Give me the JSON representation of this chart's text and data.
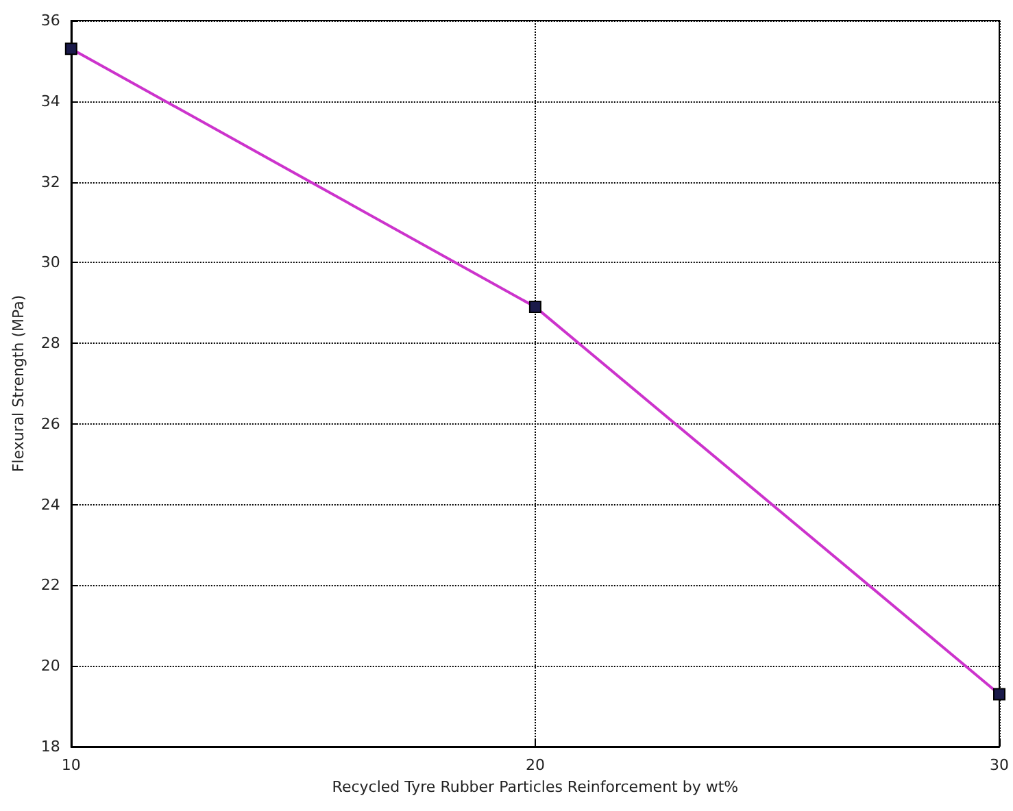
{
  "chart_data": {
    "type": "line",
    "xlabel": "Recycled Tyre Rubber Particles Reinforcement by wt%",
    "ylabel": "Flexural Strength (MPa)",
    "x": [
      10,
      20,
      30
    ],
    "series": [
      {
        "color": "#cc33cc",
        "values": [
          35.3,
          28.9,
          19.3
        ]
      }
    ],
    "xlim": [
      10,
      30
    ],
    "xticks": [
      10,
      20,
      30
    ],
    "ylim": [
      18,
      36
    ],
    "yticks": [
      18,
      20,
      22,
      24,
      26,
      28,
      30,
      32,
      34,
      36
    ],
    "grid": true,
    "marker": "square",
    "line_style": "solid"
  }
}
